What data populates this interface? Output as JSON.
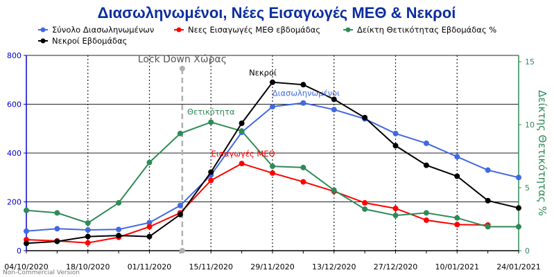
{
  "chart_data": {
    "type": "line",
    "title": "Διασωληνωμένοι, Νέες Εισαγωγές ΜΕΘ & Νεκροί",
    "x": [
      "04/10/2020",
      "11/10/2020",
      "18/10/2020",
      "25/10/2020",
      "01/11/2020",
      "08/11/2020",
      "15/11/2020",
      "22/11/2020",
      "29/11/2020",
      "06/12/2020",
      "13/12/2020",
      "20/12/2020",
      "27/12/2020",
      "03/01/2021",
      "10/01/2021",
      "17/01/2021",
      "24/01/2021"
    ],
    "x_tick_labels": [
      "04/10/2020",
      "18/10/2020",
      "01/11/2020",
      "15/11/2020",
      "29/11/2020",
      "13/12/2020",
      "27/12/2020",
      "10/01/2021",
      "24/01/2021"
    ],
    "y_left": {
      "ticks": [
        "0",
        "200",
        "400",
        "600",
        "800"
      ],
      "range": [
        0,
        800
      ],
      "color": "#0000cc"
    },
    "y_right": {
      "label": "Δείκτης Θετικότητας %",
      "ticks": [
        "0",
        "5",
        "10",
        "15"
      ],
      "range": [
        0,
        15.5
      ],
      "color": "#2e8b57"
    },
    "grid": "horizontal + vertical dotted",
    "series": [
      {
        "name": "Σύνολο Διασωληνωμένων",
        "color": "#4169e1",
        "axis": "left",
        "values": [
          80,
          90,
          85,
          87,
          115,
          185,
          310,
          485,
          590,
          605,
          578,
          540,
          480,
          440,
          385,
          330,
          300
        ]
      },
      {
        "name": "Νεες Εισαγωγές ΜΕΘ εβδομάδας",
        "color": "#ff0000",
        "axis": "left",
        "values": [
          45,
          40,
          32,
          55,
          98,
          155,
          288,
          357,
          318,
          282,
          243,
          196,
          173,
          125,
          107,
          105,
          null
        ]
      },
      {
        "name": "Δείκτη Θετικότητας Εβδομάδας %",
        "color": "#2e8b57",
        "axis": "right",
        "values": [
          3.2,
          3.0,
          2.2,
          3.8,
          7.0,
          9.3,
          10.2,
          9.5,
          6.7,
          6.6,
          4.8,
          3.3,
          2.8,
          3.0,
          2.6,
          1.9,
          1.9
        ]
      },
      {
        "name": "Νεκροί Εβδομάδας",
        "color": "#000000",
        "axis": "left",
        "values": [
          30,
          38,
          58,
          62,
          58,
          148,
          322,
          522,
          690,
          680,
          620,
          545,
          430,
          350,
          305,
          205,
          175
        ]
      }
    ],
    "annotations": [
      {
        "text": "Lock Down Χώρας",
        "color": "#555555",
        "x": "08/11/2020"
      },
      {
        "text": "Νεκροί",
        "color": "#000000",
        "series": 3,
        "at": 8
      },
      {
        "text": "Διασωληνωμένοι",
        "color": "#4169e1",
        "series": 0,
        "at": 9
      },
      {
        "text": "Θετικότητα",
        "color": "#2e8b57",
        "series": 2,
        "at": 6
      },
      {
        "text": "Εισαγωγές ΜΕΘ",
        "color": "#ff0000",
        "series": 1,
        "at": 7
      }
    ],
    "watermark": "Non-Commercial Version"
  }
}
